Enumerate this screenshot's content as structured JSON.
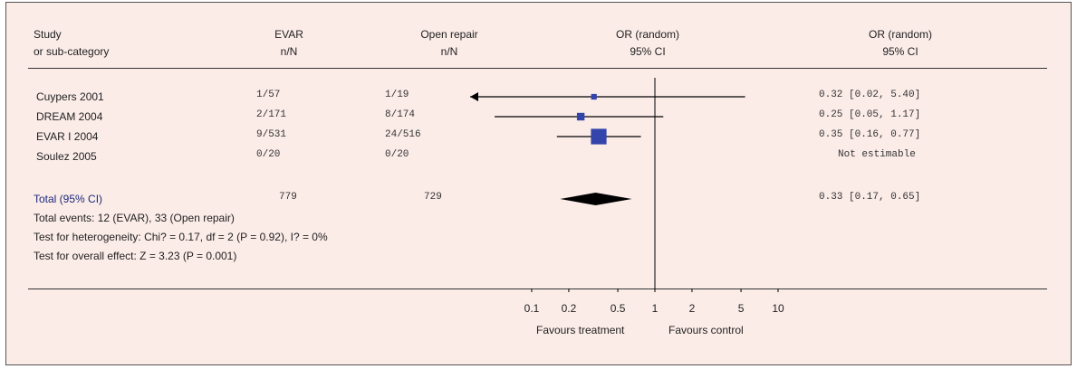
{
  "header": {
    "study": "Study",
    "subcategory": "or sub-category",
    "evar": "EVAR",
    "open": "Open repair",
    "nN": "n/N",
    "or_mid": "OR (random)",
    "ci_mid": "95% CI",
    "or_right": "OR (random)",
    "ci_right": "95% CI"
  },
  "studies": [
    {
      "name": "Cuypers 2001",
      "evar": "1/57",
      "open": "1/19",
      "result": "0.32 [0.02, 5.40]"
    },
    {
      "name": "DREAM 2004",
      "evar": "2/171",
      "open": "8/174",
      "result": "0.25 [0.05, 1.17]"
    },
    {
      "name": "EVAR I 2004",
      "evar": "9/531",
      "open": "24/516",
      "result": "0.35 [0.16, 0.77]"
    },
    {
      "name": "Soulez 2005",
      "evar": "0/20",
      "open": "0/20",
      "result": "Not estimable"
    }
  ],
  "total": {
    "label": "Total (95% CI)",
    "evar": "779",
    "open": "729",
    "result": "0.33 [0.17, 0.65]"
  },
  "footnotes": {
    "events": "Total events: 12 (EVAR), 33 (Open repair)",
    "heterogeneity": "Test for heterogeneity: Chi? = 0.17, df = 2 (P = 0.92), I? = 0%",
    "overall": "Test for overall effect: Z = 3.23 (P = 0.001)"
  },
  "axis": {
    "favours_left": "Favours treatment",
    "favours_right": "Favours control"
  },
  "chart_data": {
    "type": "forest",
    "scale": "log",
    "xlim": [
      0.1,
      10
    ],
    "ticks": [
      0.1,
      0.2,
      0.5,
      1,
      2,
      5,
      10
    ],
    "tick_labels": [
      "0.1",
      "0.2",
      "0.5",
      "1",
      "2",
      "5",
      "10"
    ],
    "reference_line": 1,
    "studies": [
      {
        "or": 0.32,
        "lo": 0.02,
        "hi": 5.4,
        "weight": 1,
        "estimable": true
      },
      {
        "or": 0.25,
        "lo": 0.05,
        "hi": 1.17,
        "weight": 2,
        "estimable": true
      },
      {
        "or": 0.35,
        "lo": 0.16,
        "hi": 0.77,
        "weight": 6,
        "estimable": true
      },
      {
        "or": null,
        "lo": null,
        "hi": null,
        "weight": 0,
        "estimable": false
      }
    ],
    "pooled": {
      "or": 0.33,
      "lo": 0.17,
      "hi": 0.65
    },
    "colors": {
      "square": "#3344aa",
      "diamond": "#000000",
      "line": "#000000"
    }
  }
}
